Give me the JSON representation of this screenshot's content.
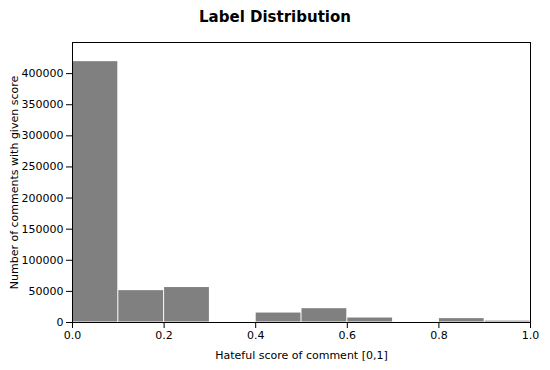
{
  "chart_data": {
    "type": "histogram",
    "title": "Label Distribution",
    "xlabel": "Hateful score of comment [0,1]",
    "ylabel": "Number of comments with given score",
    "bins": [
      0.0,
      0.1,
      0.2,
      0.3,
      0.4,
      0.5,
      0.6,
      0.7,
      0.8,
      0.9,
      1.0
    ],
    "values": [
      420000,
      52000,
      57000,
      500,
      16000,
      23000,
      8000,
      1500,
      7000,
      3000
    ],
    "color": "#808080",
    "xlim": [
      0.0,
      1.0
    ],
    "ylim": [
      0,
      450000
    ],
    "xticks": [
      {
        "value": 0.0,
        "label": "0.0"
      },
      0.2,
      0.4,
      0.6,
      0.8,
      {
        "value": 1.0,
        "label": "1.0"
      }
    ],
    "yticks": [
      0,
      50000,
      100000,
      150000,
      200000,
      250000,
      300000,
      350000,
      400000
    ]
  }
}
